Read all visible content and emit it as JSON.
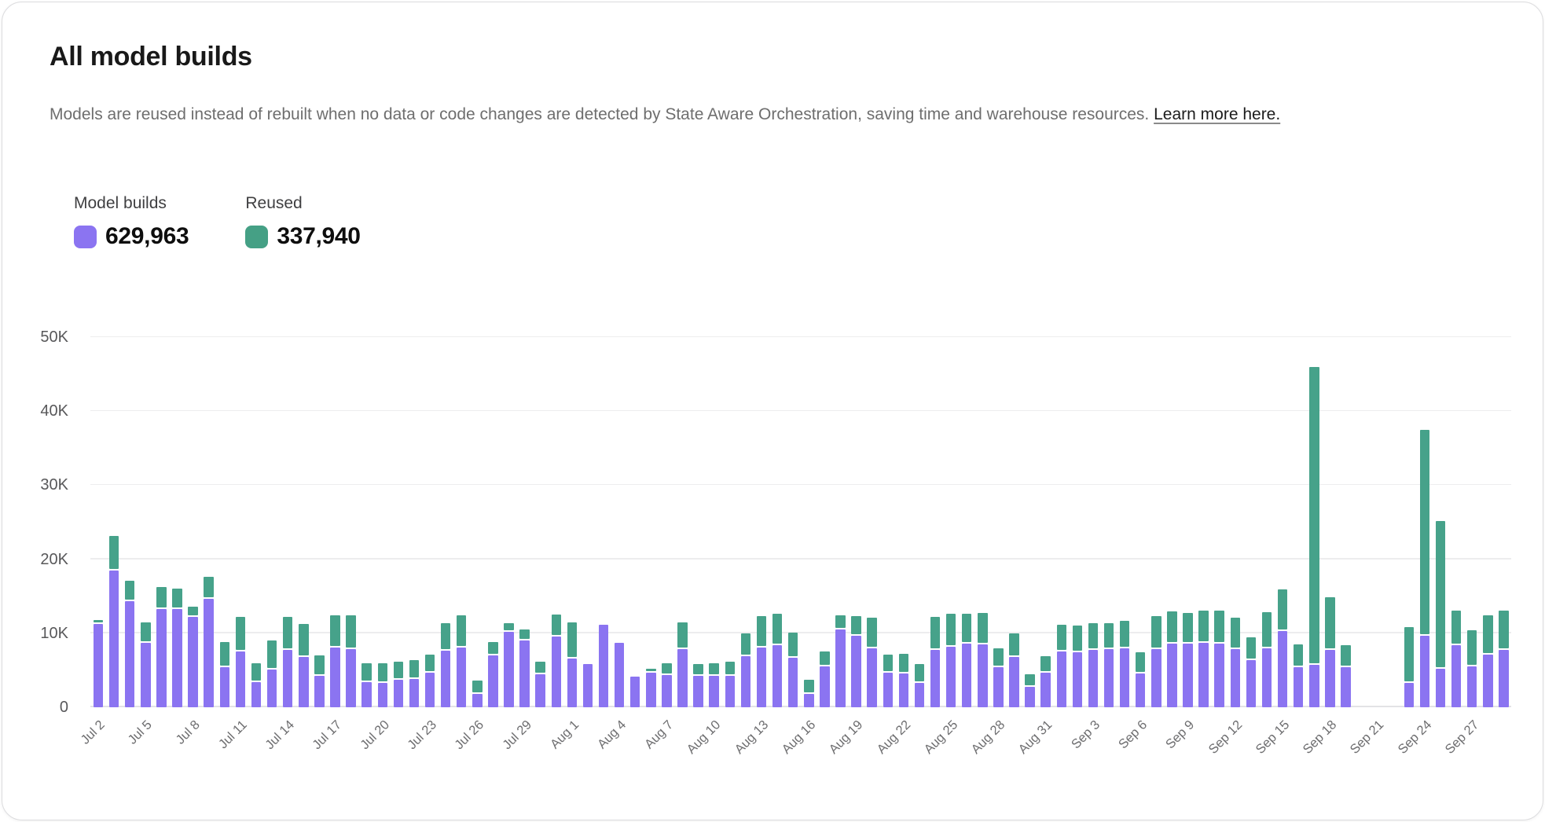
{
  "header": {
    "title": "All model builds",
    "description": "Models are reused instead of rebuilt when no data or code changes are detected by State Aware Orchestration, saving time and warehouse resources. ",
    "link_text": "Learn more here."
  },
  "legend": {
    "items": [
      {
        "label": "Model builds",
        "value": "629,963",
        "color": "#8b74f1"
      },
      {
        "label": "Reused",
        "value": "337,940",
        "color": "#45a085"
      }
    ]
  },
  "colors": {
    "model_builds": "#8b74f1",
    "reused": "#46a28a",
    "gridline": "#ededee",
    "axis_line": "#e3e3e5"
  },
  "chart_data": {
    "type": "bar",
    "stacked": true,
    "title": "All model builds",
    "xlabel": "",
    "ylabel": "",
    "ylim": [
      0,
      50000
    ],
    "grid": "horizontal",
    "legend_position": "top-left",
    "y_ticks": [
      {
        "value": 0,
        "label": "0"
      },
      {
        "value": 10000,
        "label": "10K"
      },
      {
        "value": 20000,
        "label": "20K"
      },
      {
        "value": 30000,
        "label": "30K"
      },
      {
        "value": 40000,
        "label": "40K"
      },
      {
        "value": 50000,
        "label": "50K"
      }
    ],
    "x_tick_every": 3,
    "categories": [
      "Jul 2",
      "Jul 3",
      "Jul 4",
      "Jul 5",
      "Jul 6",
      "Jul 7",
      "Jul 8",
      "Jul 9",
      "Jul 10",
      "Jul 11",
      "Jul 12",
      "Jul 13",
      "Jul 14",
      "Jul 15",
      "Jul 16",
      "Jul 17",
      "Jul 18",
      "Jul 19",
      "Jul 20",
      "Jul 21",
      "Jul 22",
      "Jul 23",
      "Jul 24",
      "Jul 25",
      "Jul 26",
      "Jul 27",
      "Jul 28",
      "Jul 29",
      "Jul 30",
      "Jul 31",
      "Aug 1",
      "Aug 2",
      "Aug 3",
      "Aug 4",
      "Aug 5",
      "Aug 6",
      "Aug 7",
      "Aug 8",
      "Aug 9",
      "Aug 10",
      "Aug 11",
      "Aug 12",
      "Aug 13",
      "Aug 14",
      "Aug 15",
      "Aug 16",
      "Aug 17",
      "Aug 18",
      "Aug 19",
      "Aug 20",
      "Aug 21",
      "Aug 22",
      "Aug 23",
      "Aug 24",
      "Aug 25",
      "Aug 26",
      "Aug 27",
      "Aug 28",
      "Aug 29",
      "Aug 30",
      "Aug 31",
      "Sep 1",
      "Sep 2",
      "Sep 3",
      "Sep 4",
      "Sep 5",
      "Sep 6",
      "Sep 7",
      "Sep 8",
      "Sep 9",
      "Sep 10",
      "Sep 11",
      "Sep 12",
      "Sep 13",
      "Sep 14",
      "Sep 15",
      "Sep 16",
      "Sep 17",
      "Sep 18",
      "Sep 19",
      "Sep 20",
      "Sep 21",
      "Sep 22",
      "Sep 23",
      "Sep 24",
      "Sep 25",
      "Sep 26",
      "Sep 27",
      "Sep 28",
      "Sep 29"
    ],
    "series": [
      {
        "name": "Model builds",
        "color": "#8b74f1",
        "values": [
          11300,
          18500,
          14300,
          8700,
          13300,
          13300,
          12200,
          14600,
          5400,
          7500,
          3400,
          5100,
          7700,
          6800,
          4300,
          8100,
          7900,
          3400,
          3300,
          3700,
          3800,
          4700,
          7600,
          8100,
          1800,
          7000,
          10200,
          9000,
          4500,
          9600,
          6600,
          5800,
          11100,
          8700,
          4100,
          4700,
          4400,
          7900,
          4300,
          4300,
          4300,
          6900,
          8100,
          8400,
          6700,
          1800,
          5500,
          10500,
          9700,
          8000,
          4700,
          4600,
          3300,
          7800,
          8200,
          8600,
          8500,
          5400,
          6800,
          2800,
          4700,
          7500,
          7400,
          7700,
          7900,
          8000,
          4600,
          7900,
          8600,
          8600,
          8700,
          8600,
          7900,
          6400,
          8000,
          10300,
          5400,
          5700,
          7800,
          5400,
          0,
          0,
          0,
          3300,
          9700,
          5200,
          8400,
          5500,
          7100,
          7800
        ]
      },
      {
        "name": "Reused",
        "color": "#46a28a",
        "values": [
          300,
          4400,
          2600,
          2600,
          2700,
          2500,
          1200,
          2800,
          3200,
          4500,
          2300,
          3700,
          4300,
          4200,
          2500,
          4100,
          4300,
          2300,
          2400,
          2300,
          2400,
          2200,
          3500,
          4100,
          1600,
          1600,
          900,
          1300,
          1400,
          2700,
          4700,
          0,
          0,
          0,
          0,
          300,
          1300,
          3400,
          1300,
          1400,
          1600,
          2900,
          4000,
          4000,
          3200,
          1700,
          1800,
          1700,
          2400,
          3900,
          2200,
          2400,
          2300,
          4200,
          4200,
          3800,
          4000,
          2300,
          3000,
          1500,
          2000,
          3400,
          3400,
          3400,
          3300,
          3500,
          2600,
          4200,
          4100,
          3900,
          4100,
          4200,
          4000,
          2800,
          4600,
          5400,
          2900,
          40100,
          6900,
          2800,
          0,
          0,
          0,
          7300,
          27600,
          19800,
          4400,
          4700,
          5100,
          5100
        ]
      }
    ]
  }
}
